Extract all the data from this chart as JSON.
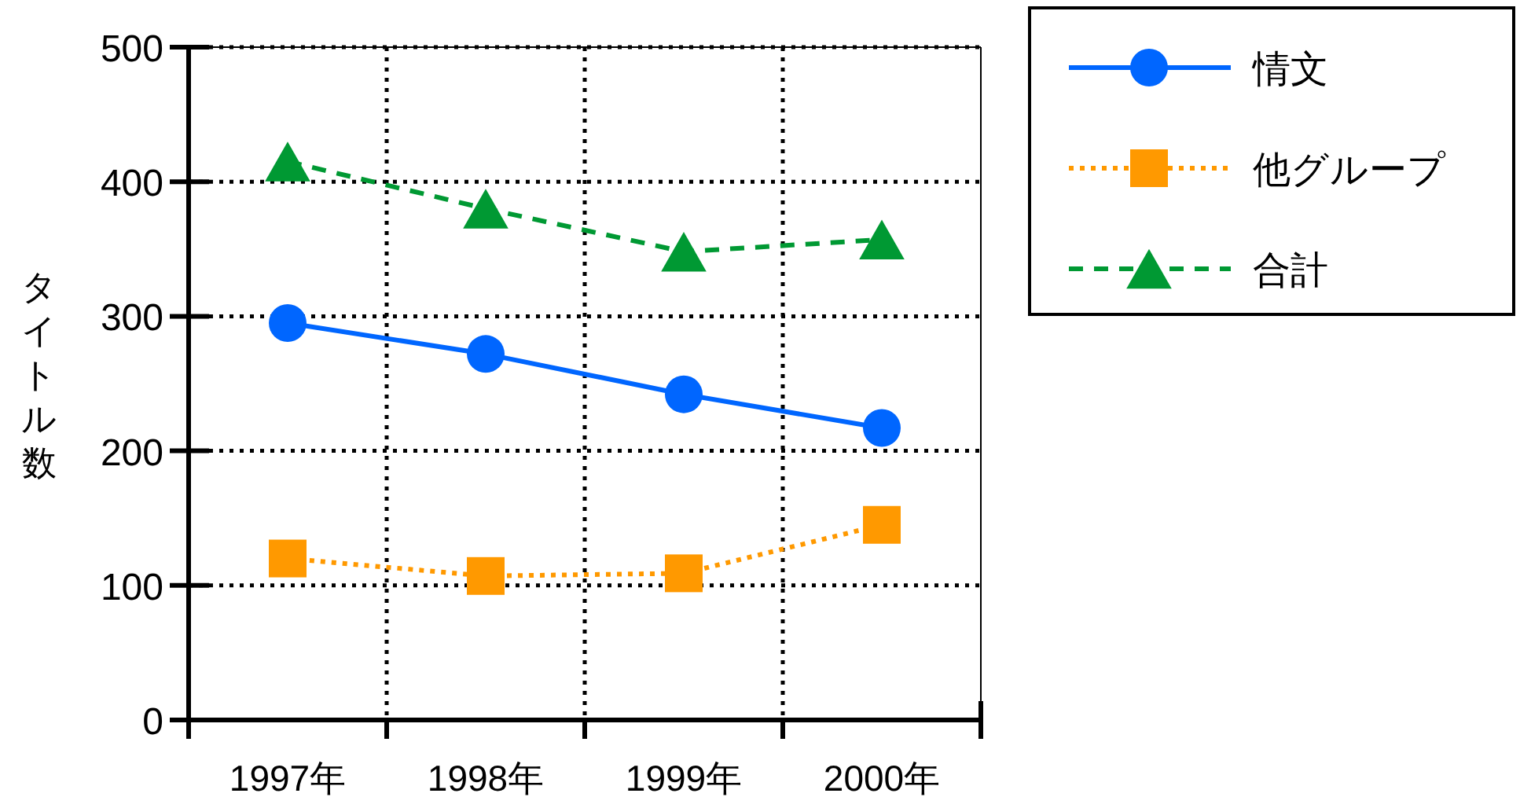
{
  "chart_data": {
    "type": "line",
    "ylabel": "タイトル数",
    "categories": [
      "1997年",
      "1998年",
      "1999年",
      "2000年"
    ],
    "series": [
      {
        "name": "情文",
        "color": "#0066ff",
        "values": [
          295,
          272,
          242,
          217
        ],
        "marker": "circle",
        "line_style": "solid"
      },
      {
        "name": "他グループ",
        "color": "#ff9900",
        "values": [
          120,
          107,
          109,
          145
        ],
        "marker": "square",
        "line_style": "dotted"
      },
      {
        "name": "合計",
        "color": "#009933",
        "values": [
          415,
          380,
          348,
          357
        ],
        "marker": "triangle",
        "line_style": "dashed"
      }
    ],
    "ylim": [
      0,
      500
    ],
    "yticks": [
      0,
      100,
      200,
      300,
      400,
      500
    ],
    "grid": true,
    "legend": "top right"
  }
}
